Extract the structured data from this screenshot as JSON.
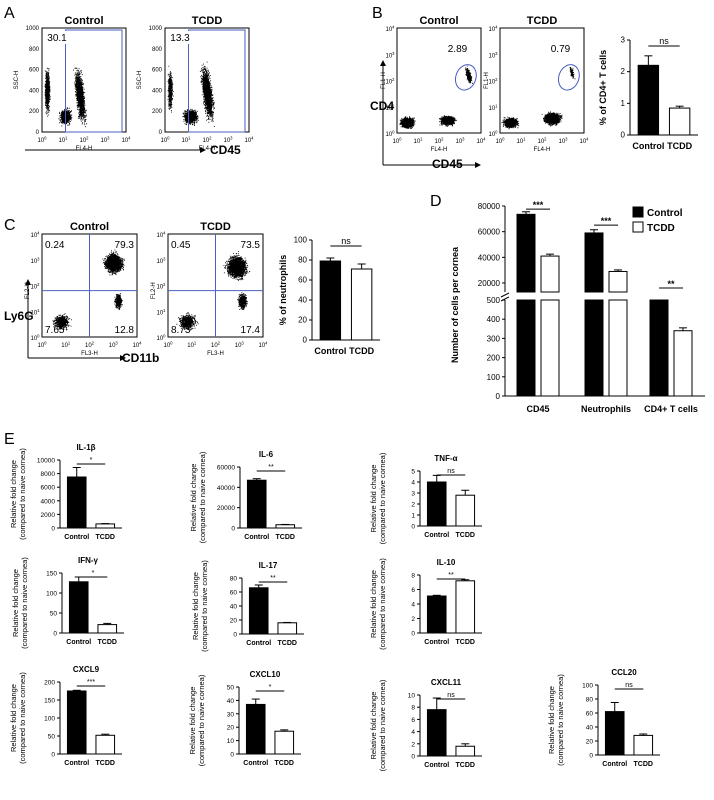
{
  "panels": {
    "A": {
      "letter": "A",
      "xaxis_name": "CD45",
      "plots": [
        {
          "title": "Control",
          "value": "30.1",
          "xlabel": "FL4-H",
          "ylabel": "SSC-H",
          "yticks": [
            "0",
            "200",
            "400",
            "600",
            "800",
            "1000"
          ],
          "xticks": [
            "10<sup>0</sup>",
            "10<sup>1</sup>",
            "10<sup>2</sup>",
            "10<sup>3</sup>",
            "10<sup>4</sup>"
          ]
        },
        {
          "title": "TCDD",
          "value": "13.3",
          "xlabel": "FL4-H",
          "ylabel": "SSC-H",
          "yticks": [
            "0",
            "200",
            "400",
            "600",
            "800",
            "1000"
          ],
          "xticks": [
            "10<sup>0</sup>",
            "10<sup>1</sup>",
            "10<sup>2</sup>",
            "10<sup>3</sup>",
            "10<sup>4</sup>"
          ]
        }
      ],
      "xtick_labels": [
        "10",
        "10",
        "10",
        "10",
        "10"
      ],
      "xtick_exps": [
        "0",
        "1",
        "2",
        "3",
        "4"
      ]
    },
    "B": {
      "letter": "B",
      "xaxis_name": "CD45",
      "yaxis_name": "CD4",
      "plots": [
        {
          "title": "Control",
          "value": "2.89",
          "xlabel": "FL4-H",
          "ylabel": "FL1-H"
        },
        {
          "title": "TCDD",
          "value": "0.79",
          "xlabel": "FL4-H",
          "ylabel": "FL1-H"
        }
      ],
      "tick_base": "10",
      "tick_exps": [
        "0",
        "1",
        "2",
        "3",
        "4"
      ]
    },
    "C": {
      "letter": "C",
      "xaxis_name": "CD11b",
      "yaxis_name": "Ly6G",
      "plots": [
        {
          "title": "Control",
          "xlabel": "FL3-H",
          "ylabel": "FL2-H",
          "q_ul": "0.24",
          "q_ur": "79.3",
          "q_ll": "7.65",
          "q_lr": "12.8"
        },
        {
          "title": "TCDD",
          "xlabel": "FL3-H",
          "ylabel": "FL2-H",
          "q_ul": "0.45",
          "q_ur": "73.5",
          "q_ll": "8.73",
          "q_lr": "17.4"
        }
      ],
      "tick_base": "10",
      "tick_exps": [
        "0",
        "1",
        "2",
        "3",
        "4"
      ]
    },
    "D": {
      "letter": "D"
    },
    "E": {
      "letter": "E"
    }
  },
  "chart_data": [
    {
      "id": "B-bar",
      "type": "bar",
      "categories": [
        "Control",
        "TCDD"
      ],
      "values": [
        2.2,
        0.85
      ],
      "errors": [
        0.3,
        0.06
      ],
      "ylabel": "% of CD4+ T cells",
      "ylim": [
        0,
        3
      ],
      "yticks": [
        "0",
        "1",
        "2",
        "3"
      ],
      "sig": "ns"
    },
    {
      "id": "C-bar",
      "type": "bar",
      "categories": [
        "Control",
        "TCDD"
      ],
      "values": [
        79,
        71
      ],
      "errors": [
        3,
        5
      ],
      "ylabel": "% of neutrophils",
      "ylim": [
        0,
        100
      ],
      "yticks": [
        "0",
        "20",
        "40",
        "60",
        "80",
        "100"
      ],
      "sig": "ns"
    },
    {
      "id": "D-bar",
      "type": "bar",
      "categories": [
        "CD45",
        "Neutrophils",
        "CD4+ T cells"
      ],
      "ylabel": "Number of cells per cornea",
      "legend": [
        "Control",
        "TCDD"
      ],
      "series": [
        {
          "name": "Control",
          "values": [
            73500,
            59000,
            500
          ]
        },
        {
          "name": "TCDD",
          "values": [
            41000,
            29000,
            340
          ]
        }
      ],
      "errors": [
        [
          2000,
          2500,
          0
        ],
        [
          1500,
          1200,
          15
        ]
      ],
      "yticks_upper": [
        "20000",
        "40000",
        "60000",
        "80000"
      ],
      "yticks_lower": [
        "0",
        "100",
        "200",
        "300",
        "400",
        "500"
      ],
      "sig": [
        "***",
        "***",
        "**"
      ]
    },
    {
      "id": "IL-1b",
      "type": "bar",
      "title": "IL-1β",
      "categories": [
        "Control",
        "TCDD"
      ],
      "values": [
        7500,
        600
      ],
      "errors": [
        1400,
        50
      ],
      "ylim": [
        0,
        10000
      ],
      "yticks": [
        "0",
        "2000",
        "4000",
        "6000",
        "8000",
        "10000"
      ],
      "sig": "*",
      "ylabel": "Relative fold change",
      "ylabel2": "(compared to naive cornea)"
    },
    {
      "id": "IL-6",
      "type": "bar",
      "title": "IL-6",
      "categories": [
        "Control",
        "TCDD"
      ],
      "values": [
        47000,
        3200
      ],
      "errors": [
        1500,
        300
      ],
      "ylim": [
        0,
        60000
      ],
      "yticks": [
        "0",
        "20000",
        "40000",
        "60000"
      ],
      "sig": "**",
      "ylabel": "Relative fold change",
      "ylabel2": "(compared to naive cornea)"
    },
    {
      "id": "TNF-a",
      "type": "bar",
      "title": "TNF-α",
      "categories": [
        "Control",
        "TCDD"
      ],
      "values": [
        4.0,
        2.8
      ],
      "errors": [
        0.6,
        0.45
      ],
      "ylim": [
        0,
        5
      ],
      "yticks": [
        "0",
        "1",
        "2",
        "3",
        "4",
        "5"
      ],
      "sig": "ns",
      "ylabel": "Relative fold change",
      "ylabel2": "(compared to naive cornea)"
    },
    {
      "id": "IFN-g",
      "type": "bar",
      "title": "IFN-γ",
      "categories": [
        "Control",
        "TCDD"
      ],
      "values": [
        128,
        21
      ],
      "errors": [
        12,
        3
      ],
      "ylim": [
        0,
        150
      ],
      "yticks": [
        "0",
        "50",
        "100",
        "150"
      ],
      "sig": "*",
      "ylabel": "Relative fold change",
      "ylabel2": "(compared to naive cornea)"
    },
    {
      "id": "IL-17",
      "type": "bar",
      "title": "IL-17",
      "categories": [
        "Control",
        "TCDD"
      ],
      "values": [
        66,
        16
      ],
      "errors": [
        4,
        0.5
      ],
      "ylim": [
        0,
        80
      ],
      "yticks": [
        "0",
        "20",
        "40",
        "60",
        "80"
      ],
      "sig": "**",
      "ylabel": "Relative fold change",
      "ylabel2": "(compared to naive cornea)"
    },
    {
      "id": "IL-10",
      "type": "bar",
      "title": "IL-10",
      "categories": [
        "Control",
        "TCDD"
      ],
      "values": [
        5.1,
        7.2
      ],
      "errors": [
        0.1,
        0.15
      ],
      "ylim": [
        0,
        8
      ],
      "yticks": [
        "0",
        "2",
        "4",
        "6",
        "8"
      ],
      "sig": "**",
      "ylabel": "Relative fold change",
      "ylabel2": "(compared to naive cornea)"
    },
    {
      "id": "CXCL9",
      "type": "bar",
      "title": "CXCL9",
      "categories": [
        "Control",
        "TCDD"
      ],
      "values": [
        175,
        52
      ],
      "errors": [
        2,
        3
      ],
      "ylim": [
        0,
        200
      ],
      "yticks": [
        "0",
        "50",
        "100",
        "150",
        "200"
      ],
      "sig": "***",
      "ylabel": "Relative fold change",
      "ylabel2": "(compared to naive cornea)"
    },
    {
      "id": "CXCL10",
      "type": "bar",
      "title": "CXCL10",
      "categories": [
        "Control",
        "TCDD"
      ],
      "values": [
        37,
        17
      ],
      "errors": [
        4,
        1
      ],
      "ylim": [
        0,
        50
      ],
      "yticks": [
        "0",
        "10",
        "20",
        "30",
        "40",
        "50"
      ],
      "sig": "*",
      "ylabel": "Relative fold change",
      "ylabel2": "(compared to naive cornea)"
    },
    {
      "id": "CXCL11",
      "type": "bar",
      "title": "CXCL11",
      "categories": [
        "Control",
        "TCDD"
      ],
      "values": [
        7.6,
        1.6
      ],
      "errors": [
        1.9,
        0.4
      ],
      "ylim": [
        0,
        10
      ],
      "yticks": [
        "0",
        "2",
        "4",
        "6",
        "8",
        "10"
      ],
      "sig": "ns",
      "ylabel": "Relative fold change",
      "ylabel2": "(compared to naive cornea)"
    },
    {
      "id": "CCL20",
      "type": "bar",
      "title": "CCL20",
      "categories": [
        "Control",
        "TCDD"
      ],
      "values": [
        62,
        28
      ],
      "errors": [
        13,
        2
      ],
      "ylim": [
        0,
        100
      ],
      "yticks": [
        "0",
        "20",
        "40",
        "60",
        "80",
        "100"
      ],
      "sig": "ns",
      "ylabel": "Relative fold change",
      "ylabel2": "(compared to naive cornea)"
    }
  ],
  "colors": {
    "control": "#000000",
    "tcdd": "#ffffff",
    "gate": "#4a5fc1"
  }
}
